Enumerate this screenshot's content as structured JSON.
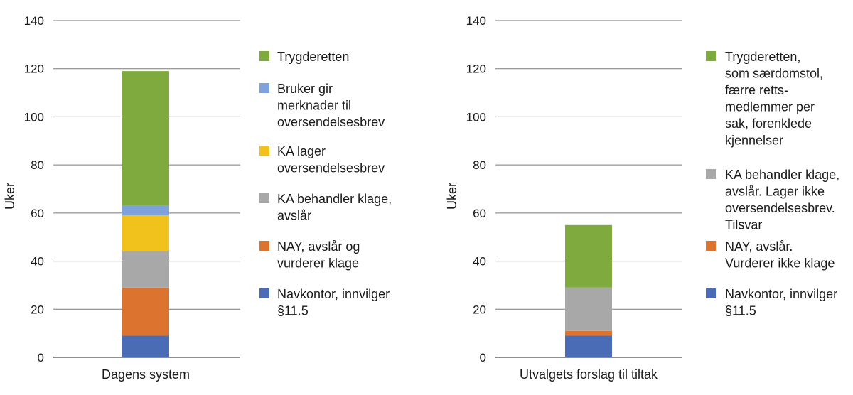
{
  "chart_data": [
    {
      "type": "bar",
      "stacked": true,
      "ylabel": "Uker",
      "ylim": [
        0,
        140
      ],
      "yticks": [
        0,
        20,
        40,
        60,
        80,
        100,
        120,
        140
      ],
      "grid": true,
      "legend_position": "right",
      "categories": [
        "Dagens system"
      ],
      "series": [
        {
          "name": "Navkontor, innvilger §11.5",
          "values": [
            9
          ],
          "color": "#4a6bb5"
        },
        {
          "name": "NAY, avslår og vurderer klage",
          "values": [
            20
          ],
          "color": "#dc7430"
        },
        {
          "name": "KA behandler klage, avslår",
          "values": [
            15
          ],
          "color": "#a8a8a8"
        },
        {
          "name": "KA lager oversendelsesbrev",
          "values": [
            15
          ],
          "color": "#f0c21b"
        },
        {
          "name": "Bruker gir merknader til oversendelsesbrev",
          "values": [
            4
          ],
          "color": "#7ea3dc"
        },
        {
          "name": "Trygderetten",
          "values": [
            56
          ],
          "color": "#7fab3e"
        }
      ],
      "legend_lines": [
        [
          "Trygderetten"
        ],
        [
          "Bruker gir",
          "merknader til",
          "oversendelsesbrev"
        ],
        [
          "KA lager",
          "oversendelsesbrev"
        ],
        [
          "KA behandler klage,",
          "avslår"
        ],
        [
          "NAY, avslår og",
          "vurderer klage"
        ],
        [
          "Navkontor, innvilger",
          "§11.5"
        ]
      ]
    },
    {
      "type": "bar",
      "stacked": true,
      "ylabel": "Uker",
      "ylim": [
        0,
        140
      ],
      "yticks": [
        0,
        20,
        40,
        60,
        80,
        100,
        120,
        140
      ],
      "grid": true,
      "legend_position": "right",
      "categories": [
        "Utvalgets forslag til tiltak"
      ],
      "series": [
        {
          "name": "Navkontor, innvilger §11.5",
          "values": [
            9
          ],
          "color": "#4a6bb5"
        },
        {
          "name": "NAY, avslår. Vurderer ikke klage",
          "values": [
            2
          ],
          "color": "#dc7430"
        },
        {
          "name": "KA behandler klage, avslår. Lager ikke oversendelsesbrev. Tilsvar",
          "values": [
            18
          ],
          "color": "#a8a8a8"
        },
        {
          "name": "Trygderetten, som særdomstol, færre retts-medlemmer per sak, forenklede kjennelser",
          "values": [
            26
          ],
          "color": "#7fab3e"
        }
      ],
      "legend_lines": [
        [
          "Trygderetten,",
          "som særdomstol,",
          "færre retts-",
          "medlemmer per",
          "sak, forenklede",
          "kjennelser"
        ],
        [
          "KA behandler klage,",
          "avslår. Lager ikke",
          "oversendelsesbrev.",
          "Tilsvar"
        ],
        [
          "NAY, avslår.",
          "Vurderer ikke klage"
        ],
        [
          "Navkontor, innvilger",
          "§11.5"
        ]
      ]
    }
  ]
}
